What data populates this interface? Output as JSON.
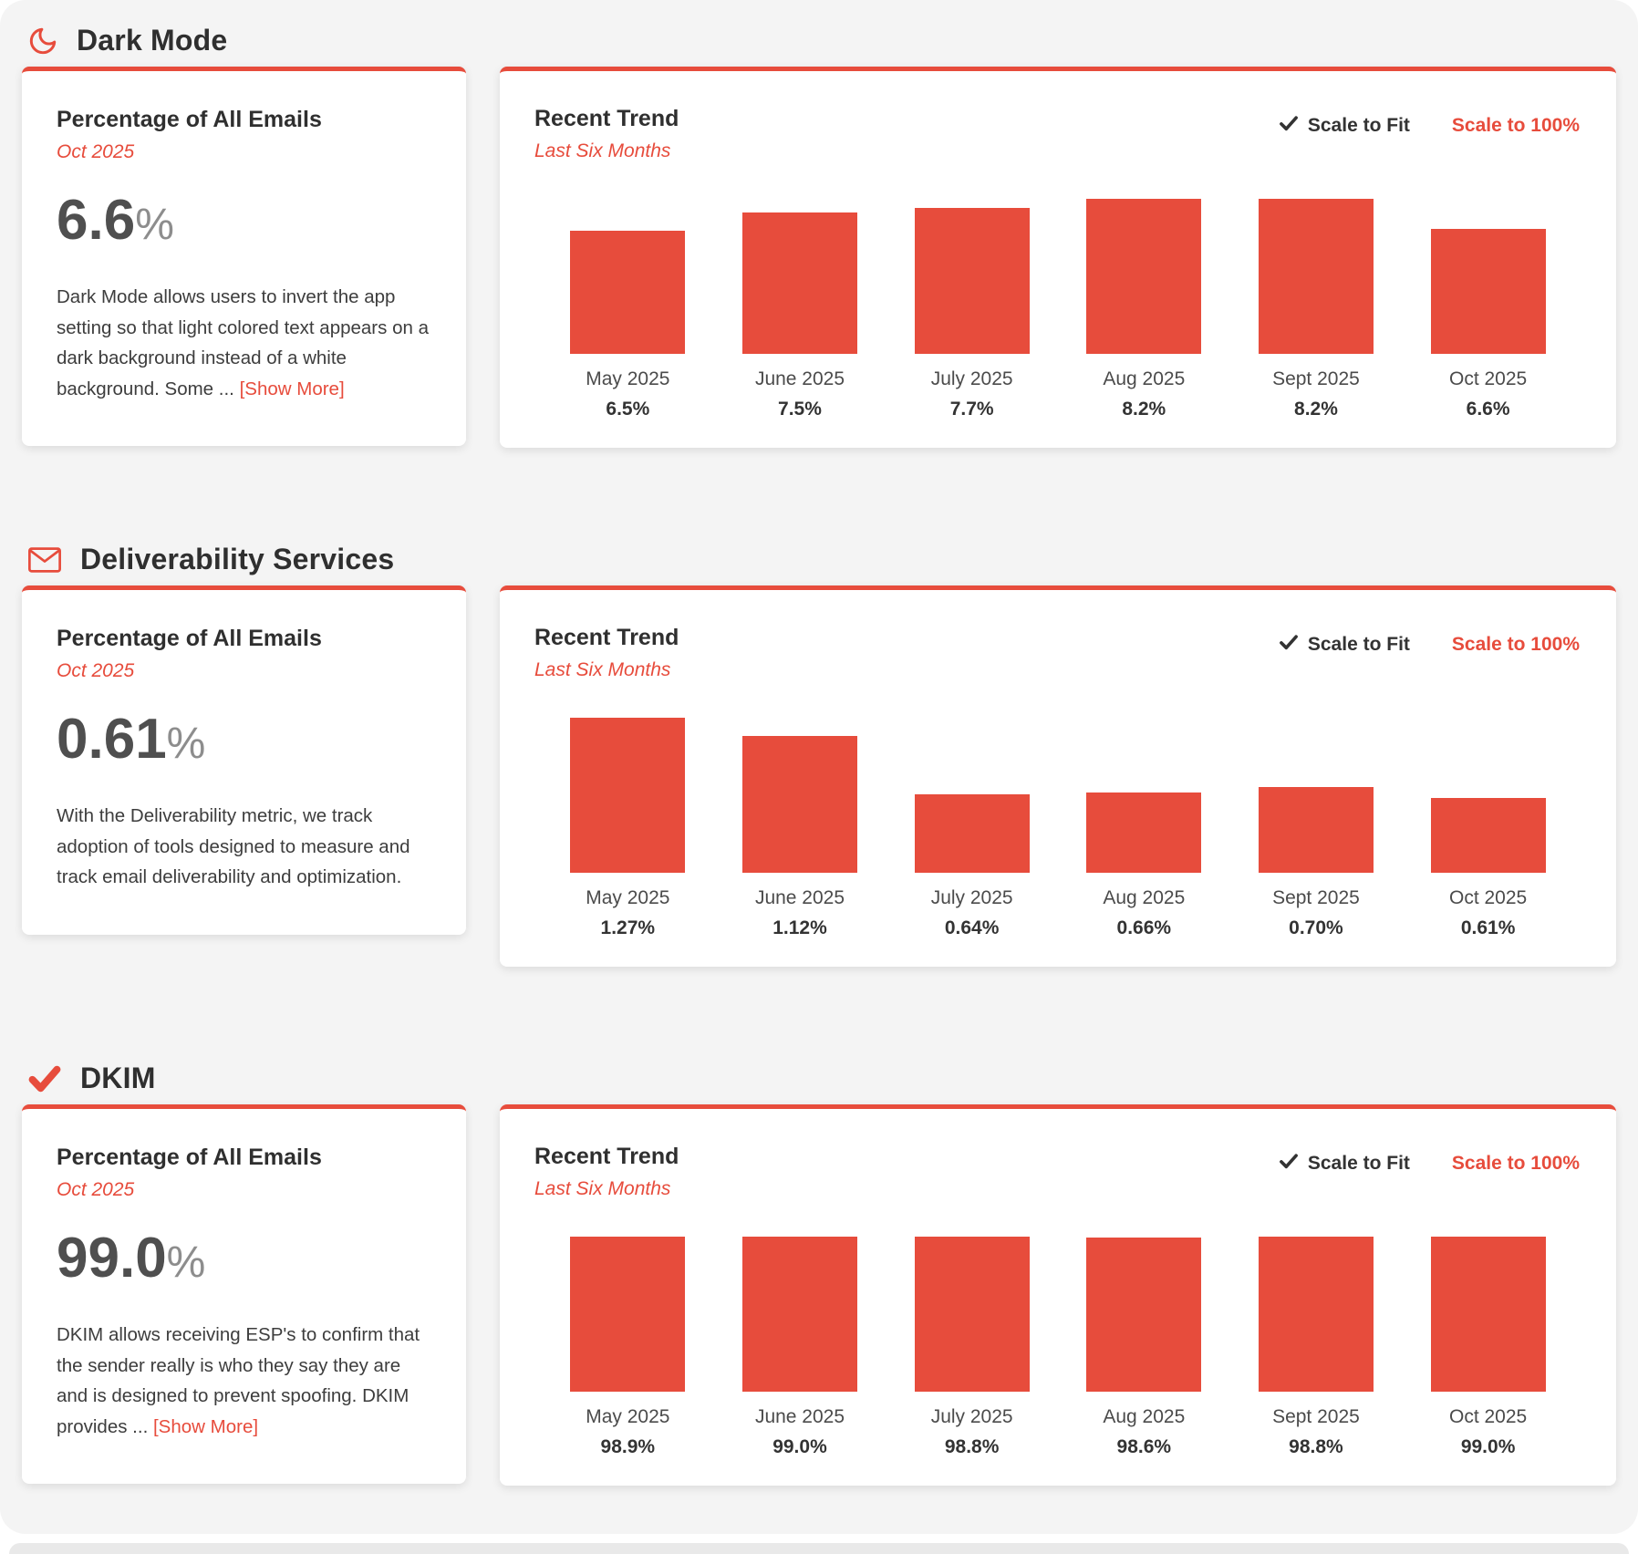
{
  "theme": {
    "accent_red": "#e74c3c",
    "page_background": "#f4f4f4",
    "card_background": "#ffffff",
    "bar_color": "#e74c3c"
  },
  "shared": {
    "stat_title": "Percentage of All Emails",
    "stat_date": "Oct 2025",
    "percent_sign": "%",
    "trend_title": "Recent Trend",
    "trend_subtitle": "Last Six Months",
    "scale_to_fit": "Scale to Fit",
    "scale_to_100": "Scale to 100%",
    "show_more": "[Show More]"
  },
  "sections": [
    {
      "title": "Dark Mode",
      "icon": "moon-icon",
      "value": "6.6",
      "description": "Dark Mode allows users to invert the app setting so that light colored text appears on a dark background instead of a white background. Some ...",
      "show_more_visible": true
    },
    {
      "title": "Deliverability Services",
      "icon": "envelope-icon",
      "value": "0.61",
      "description": "With the Deliverability metric, we track adoption of tools designed to measure and track email deliverability and optimization.",
      "show_more_visible": false
    },
    {
      "title": "DKIM",
      "icon": "check-icon",
      "value": "99.0",
      "description": "DKIM allows receiving ESP's to confirm that the sender really is who they say they are and is designed to prevent spoofing. DKIM provides ...",
      "show_more_visible": true
    }
  ],
  "chart_data": [
    {
      "type": "bar",
      "section": "Dark Mode",
      "title": "Recent Trend",
      "subtitle": "Last Six Months",
      "categories": [
        "May 2025",
        "June 2025",
        "July 2025",
        "Aug 2025",
        "Sept 2025",
        "Oct 2025"
      ],
      "values": [
        6.5,
        7.5,
        7.7,
        8.2,
        8.2,
        6.6
      ],
      "value_labels": [
        "6.5%",
        "7.5%",
        "7.7%",
        "8.2%",
        "8.2%",
        "6.6%"
      ],
      "ylim": [
        0,
        8.2
      ],
      "bar_color": "#e74c3c",
      "grid": false,
      "legend": false,
      "scale_mode": "Scale to Fit"
    },
    {
      "type": "bar",
      "section": "Deliverability Services",
      "title": "Recent Trend",
      "subtitle": "Last Six Months",
      "categories": [
        "May 2025",
        "June 2025",
        "July 2025",
        "Aug 2025",
        "Sept 2025",
        "Oct 2025"
      ],
      "values": [
        1.27,
        1.12,
        0.64,
        0.66,
        0.7,
        0.61
      ],
      "value_labels": [
        "1.27%",
        "1.12%",
        "0.64%",
        "0.66%",
        "0.70%",
        "0.61%"
      ],
      "ylim": [
        0,
        1.27
      ],
      "bar_color": "#e74c3c",
      "grid": false,
      "legend": false,
      "scale_mode": "Scale to Fit"
    },
    {
      "type": "bar",
      "section": "DKIM",
      "title": "Recent Trend",
      "subtitle": "Last Six Months",
      "categories": [
        "May 2025",
        "June 2025",
        "July 2025",
        "Aug 2025",
        "Sept 2025",
        "Oct 2025"
      ],
      "values": [
        98.9,
        99.0,
        98.8,
        98.6,
        98.8,
        99.0
      ],
      "value_labels": [
        "98.9%",
        "99.0%",
        "98.8%",
        "98.6%",
        "98.8%",
        "99.0%"
      ],
      "ylim": [
        0,
        99.0
      ],
      "bar_color": "#e74c3c",
      "grid": false,
      "legend": false,
      "scale_mode": "Scale to Fit"
    }
  ]
}
